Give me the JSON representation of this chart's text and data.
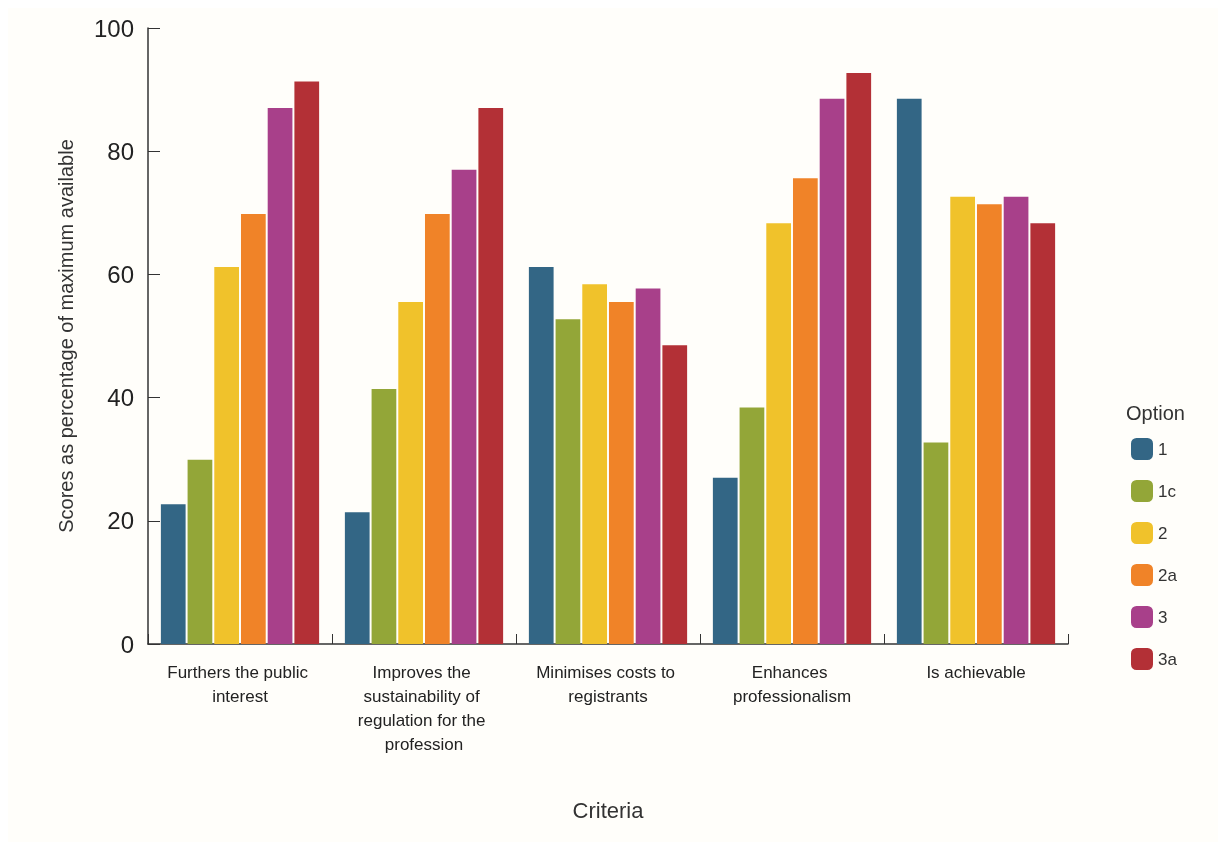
{
  "chart_data": {
    "type": "bar",
    "xlabel": "Criteria",
    "ylabel": "Scores as percentage of maximum available",
    "legend_title": "Option",
    "categories": [
      "Furthers the public interest",
      "Improves the sustainability of regulation for the profession",
      "Minimises costs to registrants",
      "Enhances professionalism",
      "Is achievable"
    ],
    "series": [
      {
        "name": "1",
        "color": "#336685",
        "values": [
          22.7,
          21.4,
          61.2,
          27,
          88.5
        ]
      },
      {
        "name": "1c",
        "color": "#93a638",
        "values": [
          29.9,
          41.4,
          52.7,
          38.4,
          32.7
        ]
      },
      {
        "name": "2",
        "color": "#f0c22b",
        "values": [
          61.2,
          55.5,
          58.4,
          68.3,
          72.6
        ]
      },
      {
        "name": "2a",
        "color": "#f08328",
        "values": [
          69.8,
          69.8,
          55.5,
          75.6,
          71.4
        ]
      },
      {
        "name": "3",
        "color": "#a8408a",
        "values": [
          87,
          77,
          57.7,
          88.5,
          72.6
        ]
      },
      {
        "name": "3a",
        "color": "#b33036",
        "values": [
          91.3,
          87,
          48.5,
          92.7,
          68.3
        ]
      }
    ],
    "ylim": [
      0,
      100
    ],
    "yticks": [
      0,
      20,
      40,
      60,
      80,
      100
    ],
    "grid": false,
    "legend": "right"
  }
}
